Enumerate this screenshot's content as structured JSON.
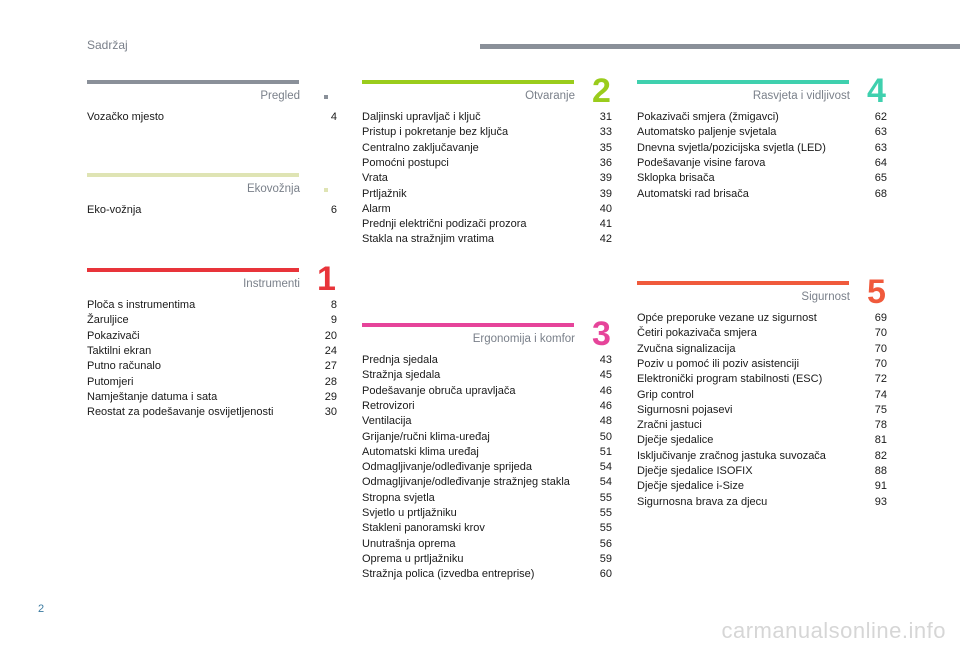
{
  "header": {
    "title": "Sadržaj"
  },
  "sections": [
    {
      "title": "Pregled",
      "color": "#8a9099",
      "entries": [
        {
          "title": "Vozačko mjesto",
          "page": 4
        }
      ]
    },
    {
      "title": "Ekovožnja",
      "color": "#dfe4b4",
      "entries": [
        {
          "title": "Eko-vožnja",
          "page": 6
        }
      ]
    },
    {
      "title": "Instrumenti",
      "number": "1",
      "color": "#e8343a",
      "entries": [
        {
          "title": "Ploča s instrumentima",
          "page": 8
        },
        {
          "title": "Žaruljice",
          "page": 9
        },
        {
          "title": "Pokazivači",
          "page": 20
        },
        {
          "title": "Taktilni ekran",
          "page": 24
        },
        {
          "title": "Putno računalo",
          "page": 27
        },
        {
          "title": "Putomjeri",
          "page": 28
        },
        {
          "title": "Namještanje datuma i sata",
          "page": 29
        },
        {
          "title": "Reostat za podešavanje osvijetljenosti",
          "page": 30
        }
      ]
    },
    {
      "title": "Otvaranje",
      "number": "2",
      "color": "#9acc1c",
      "entries": [
        {
          "title": "Daljinski upravljač i ključ",
          "page": 31
        },
        {
          "title": "Pristup i pokretanje bez ključa",
          "page": 33
        },
        {
          "title": "Centralno zaključavanje",
          "page": 35
        },
        {
          "title": "Pomoćni postupci",
          "page": 36
        },
        {
          "title": "Vrata",
          "page": 39
        },
        {
          "title": "Prtljažnik",
          "page": 39
        },
        {
          "title": "Alarm",
          "page": 40
        },
        {
          "title": "Prednji električni podizači prozora",
          "page": 41
        },
        {
          "title": "Stakla na stražnjim vratima",
          "page": 42
        }
      ]
    },
    {
      "title": "Ergonomija i komfor",
      "number": "3",
      "color": "#e6449a",
      "entries": [
        {
          "title": "Prednja sjedala",
          "page": 43
        },
        {
          "title": "Stražnja sjedala",
          "page": 45
        },
        {
          "title": "Podešavanje obruča upravljača",
          "page": 46
        },
        {
          "title": "Retrovizori",
          "page": 46
        },
        {
          "title": "Ventilacija",
          "page": 48
        },
        {
          "title": "Grijanje/ručni klima-uređaj",
          "page": 50
        },
        {
          "title": "Automatski klima uređaj",
          "page": 51
        },
        {
          "title": "Odmagljivanje/odleđivanje sprijeda",
          "page": 54
        },
        {
          "title": "Odmagljivanje/odleđivanje stražnjeg stakla",
          "page": 54
        },
        {
          "title": "Stropna svjetla",
          "page": 55
        },
        {
          "title": "Svjetlo u prtljažniku",
          "page": 55
        },
        {
          "title": "Stakleni panoramski krov",
          "page": 55
        },
        {
          "title": "Unutrašnja oprema",
          "page": 56
        },
        {
          "title": "Oprema u prtljažniku",
          "page": 59
        },
        {
          "title": "Stražnja polica (izvedba entreprise)",
          "page": 60
        }
      ]
    },
    {
      "title": "Rasvjeta i vidljivost",
      "number": "4",
      "color": "#3fd0ae",
      "entries": [
        {
          "title": "Pokazivači smjera (žmigavci)",
          "page": 62
        },
        {
          "title": "Automatsko paljenje svjetala",
          "page": 63
        },
        {
          "title": "Dnevna svjetla/pozicijska svjetla (LED)",
          "page": 63
        },
        {
          "title": "Podešavanje visine farova",
          "page": 64
        },
        {
          "title": "Sklopka brisača",
          "page": 65
        },
        {
          "title": "Automatski rad brisača",
          "page": 68
        }
      ]
    },
    {
      "title": "Sigurnost",
      "number": "5",
      "color": "#f05a3c",
      "entries": [
        {
          "title": "Opće preporuke vezane uz sigurnost",
          "page": 69
        },
        {
          "title": "Četiri pokazivača smjera",
          "page": 70
        },
        {
          "title": "Zvučna signalizacija",
          "page": 70
        },
        {
          "title": "Poziv u pomoć ili poziv asistenciji",
          "page": 70
        },
        {
          "title": "Elektronički program stabilnosti (ESC)",
          "page": 72
        },
        {
          "title": "Grip control",
          "page": 74
        },
        {
          "title": "Sigurnosni pojasevi",
          "page": 75
        },
        {
          "title": "Zračni jastuci",
          "page": 78
        },
        {
          "title": "Dječje sjedalice",
          "page": 81
        },
        {
          "title": "Isključivanje zračnog jastuka suvozača",
          "page": 82
        },
        {
          "title": "Dječje sjedalice ISOFIX",
          "page": 88
        },
        {
          "title": "Dječje sjedalice i-Size",
          "page": 91
        },
        {
          "title": "Sigurnosna brava za djecu",
          "page": 93
        }
      ]
    }
  ],
  "page_number": "2",
  "watermark": "carmanualsonline.info"
}
